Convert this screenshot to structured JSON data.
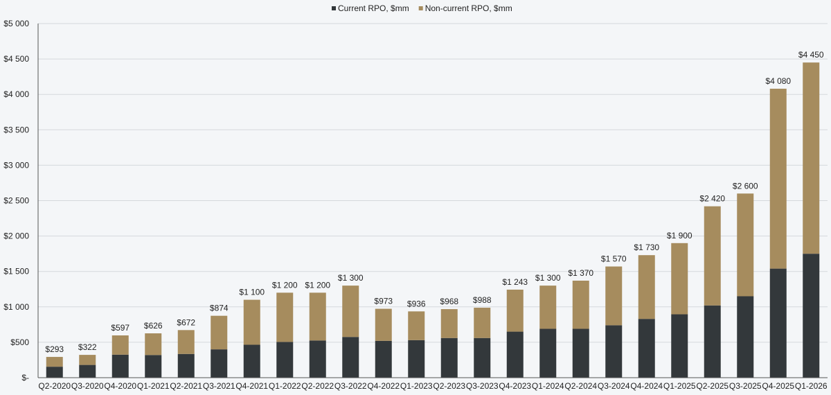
{
  "chart_data": {
    "type": "bar",
    "stacked": true,
    "title": "",
    "xlabel": "",
    "ylabel": "",
    "ylim": [
      0,
      5000
    ],
    "y_ticks": [
      {
        "value": 0,
        "label": "$-"
      },
      {
        "value": 500,
        "label": "$500"
      },
      {
        "value": 1000,
        "label": "$1 000"
      },
      {
        "value": 1500,
        "label": "$1 500"
      },
      {
        "value": 2000,
        "label": "$2 000"
      },
      {
        "value": 2500,
        "label": "$2 500"
      },
      {
        "value": 3000,
        "label": "$3 000"
      },
      {
        "value": 3500,
        "label": "$3 500"
      },
      {
        "value": 4000,
        "label": "$4 000"
      },
      {
        "value": 4500,
        "label": "$4 500"
      },
      {
        "value": 5000,
        "label": "$5 000"
      }
    ],
    "grid": true,
    "legend_position": "top-center",
    "categories": [
      "Q2-2020",
      "Q3-2020",
      "Q4-2020",
      "Q1-2021",
      "Q2-2021",
      "Q3-2021",
      "Q4-2021",
      "Q1-2022",
      "Q2-2022",
      "Q3-2022",
      "Q4-2022",
      "Q1-2023",
      "Q2-2023",
      "Q3-2023",
      "Q4-2023",
      "Q1-2024",
      "Q2-2024",
      "Q3-2024",
      "Q4-2024",
      "Q1-2025",
      "Q2-2025",
      "Q3-2025",
      "Q4-2025",
      "Q1-2026"
    ],
    "series": [
      {
        "name": "Current RPO, $mm",
        "color": "#33383b",
        "values": [
          155,
          180,
          325,
          320,
          335,
          400,
          465,
          505,
          525,
          575,
          520,
          530,
          560,
          560,
          650,
          690,
          690,
          740,
          830,
          895,
          1020,
          1150,
          1540,
          1750
        ]
      },
      {
        "name": "Non-current RPO, $mm",
        "color": "#a68c5e",
        "values": [
          138,
          142,
          272,
          306,
          337,
          474,
          635,
          695,
          675,
          725,
          453,
          406,
          408,
          428,
          593,
          610,
          680,
          830,
          900,
          1005,
          1400,
          1450,
          2540,
          2700
        ]
      }
    ],
    "totals": [
      293,
      322,
      597,
      626,
      672,
      874,
      1100,
      1200,
      1200,
      1300,
      973,
      936,
      968,
      988,
      1243,
      1300,
      1370,
      1570,
      1730,
      1900,
      2420,
      2600,
      4080,
      4450
    ],
    "total_labels": [
      "$293",
      "$322",
      "$597",
      "$626",
      "$672",
      "$874",
      "$1 100",
      "$1 200",
      "$1 200",
      "$1 300",
      "$973",
      "$936",
      "$968",
      "$988",
      "$1 243",
      "$1 300",
      "$1 370",
      "$1 570",
      "$1 730",
      "$1 900",
      "$2 420",
      "$2 600",
      "$4 080",
      "$4 450"
    ]
  }
}
